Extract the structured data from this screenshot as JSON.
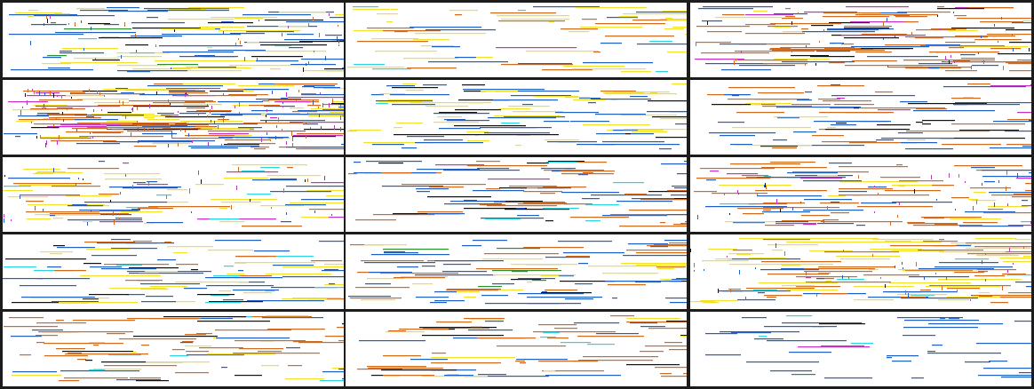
{
  "grid": {
    "rows": 5,
    "cols": 3,
    "background": "#1c1c1c",
    "panel_background": "#ffffff"
  },
  "palette": {
    "blue": "#1f5fc4",
    "yellow": "#f2e02a",
    "orange": "#d26a1e",
    "black": "#111111",
    "cyan": "#2fd3e0",
    "magenta": "#c531c8",
    "green": "#2e8b2e",
    "olive": "#7c8a2a"
  },
  "panels": [
    {
      "id": 0,
      "pattern": "blue-yellow-dense"
    },
    {
      "id": 1,
      "pattern": "yellow-orange-sparse"
    },
    {
      "id": 2,
      "pattern": "orange-dense-dotted"
    },
    {
      "id": 3,
      "pattern": "mixed-vertical-dense"
    },
    {
      "id": 4,
      "pattern": "blue-yellow"
    },
    {
      "id": 5,
      "pattern": "orange-blue-segments"
    },
    {
      "id": 6,
      "pattern": "yellow-magenta"
    },
    {
      "id": 7,
      "pattern": "orange-blue"
    },
    {
      "id": 8,
      "pattern": "orange-blue-dotted"
    },
    {
      "id": 9,
      "pattern": "blue-yellow-cyan"
    },
    {
      "id": 10,
      "pattern": "orange-blue-yellow"
    },
    {
      "id": 11,
      "pattern": "yellow-orange-dense"
    },
    {
      "id": 12,
      "pattern": "orange-segments"
    },
    {
      "id": 13,
      "pattern": "orange-sparse"
    },
    {
      "id": 14,
      "pattern": "blue-sparse"
    }
  ]
}
